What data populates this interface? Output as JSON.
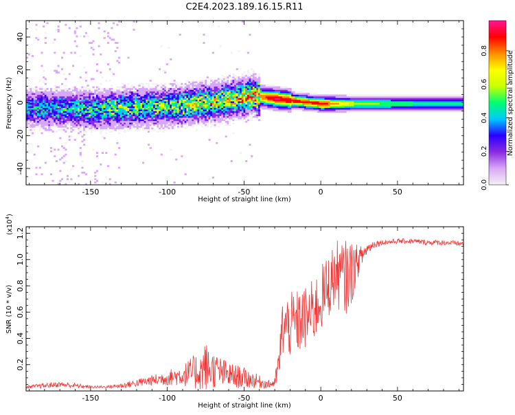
{
  "title": "C2E4.2023.189.16.15.R11",
  "chart_data": [
    {
      "type": "heatmap",
      "title": "C2E4.2023.189.16.15.R11",
      "xlabel": "Height of straight line (km)",
      "ylabel": "Frequency (Hz)",
      "xlim": [
        -192,
        93
      ],
      "ylim": [
        -50,
        50
      ],
      "xticks": [
        "-150",
        "-100",
        "-50",
        "0",
        "50"
      ],
      "xtick_values": [
        -150,
        -100,
        -50,
        0,
        50
      ],
      "yticks": [
        "40",
        "20",
        "0",
        "-20",
        "-40"
      ],
      "ytick_values": [
        40,
        20,
        0,
        -20,
        -40
      ],
      "grid": false,
      "ridge": {
        "x": [
          -192,
          -170,
          -150,
          -130,
          -110,
          -90,
          -70,
          -55,
          -45,
          -38,
          -30,
          -20,
          -10,
          0,
          20,
          50,
          93
        ],
        "frequency": [
          -4,
          -4,
          -5,
          -4,
          -3,
          -2,
          0,
          2,
          4,
          3,
          2,
          1,
          0,
          -1,
          -1,
          -1,
          -1
        ],
        "peak_amplitude": [
          0.35,
          0.4,
          0.45,
          0.5,
          0.5,
          0.55,
          0.6,
          0.6,
          0.7,
          0.8,
          0.95,
          0.9,
          0.85,
          0.9,
          0.6,
          0.5,
          0.45
        ]
      },
      "colorbar": {
        "label": "Normalized spectral amplitude",
        "ticks": [
          "0.0",
          "0.2",
          "0.4",
          "0.6",
          "0.8"
        ],
        "tick_values": [
          0.0,
          0.2,
          0.4,
          0.6,
          0.8
        ],
        "range": [
          0,
          0.98
        ],
        "colors": [
          "#f2f2f2",
          "#d8a8f8",
          "#8a2be2",
          "#2a00ff",
          "#00c8ff",
          "#00ff70",
          "#c8ff00",
          "#ffff00",
          "#ff8c00",
          "#ff0000",
          "#ff1493"
        ]
      }
    },
    {
      "type": "line",
      "xlabel": "Height of straight line (km)",
      "ylabel": "SNR (10 * v/v)",
      "exponent_label": "(x10",
      "exponent_value": "4",
      "exponent_close": ")",
      "xlim": [
        -192,
        93
      ],
      "ylim": [
        0,
        1.25
      ],
      "xticks": [
        "-150",
        "-100",
        "-50",
        "0",
        "50"
      ],
      "xtick_values": [
        -150,
        -100,
        -50,
        0,
        50
      ],
      "yticks": [
        "0.2",
        "0.4",
        "0.6",
        "0.8",
        "1.0",
        "1.2"
      ],
      "ytick_values": [
        0.2,
        0.4,
        0.6,
        0.8,
        1.0,
        1.2
      ],
      "series": [
        {
          "name": "SNR",
          "color": "#ee3333",
          "x": [
            -192,
            -180,
            -170,
            -160,
            -150,
            -140,
            -130,
            -120,
            -110,
            -100,
            -90,
            -80,
            -75,
            -70,
            -60,
            -50,
            -40,
            -35,
            -30,
            -27,
            -25,
            -20,
            -15,
            -10,
            -5,
            0,
            5,
            10,
            15,
            20,
            25,
            30,
            35,
            40,
            50,
            60,
            70,
            80,
            93
          ],
          "y": [
            0.03,
            0.04,
            0.05,
            0.04,
            0.03,
            0.03,
            0.04,
            0.06,
            0.08,
            0.1,
            0.12,
            0.15,
            0.18,
            0.16,
            0.12,
            0.1,
            0.07,
            0.05,
            0.06,
            0.22,
            0.48,
            0.5,
            0.52,
            0.55,
            0.6,
            0.7,
            0.8,
            0.9,
            0.85,
            0.9,
            1.0,
            1.08,
            1.12,
            1.13,
            1.14,
            1.14,
            1.13,
            1.13,
            1.12
          ],
          "noise_amplitude": [
            0.01,
            0.02,
            0.02,
            0.02,
            0.01,
            0.01,
            0.02,
            0.03,
            0.04,
            0.06,
            0.08,
            0.15,
            0.2,
            0.14,
            0.1,
            0.08,
            0.05,
            0.03,
            0.04,
            0.15,
            0.22,
            0.25,
            0.25,
            0.25,
            0.25,
            0.25,
            0.25,
            0.25,
            0.3,
            0.25,
            0.1,
            0.05,
            0.03,
            0.02,
            0.02,
            0.02,
            0.02,
            0.02,
            0.02
          ]
        }
      ]
    }
  ]
}
